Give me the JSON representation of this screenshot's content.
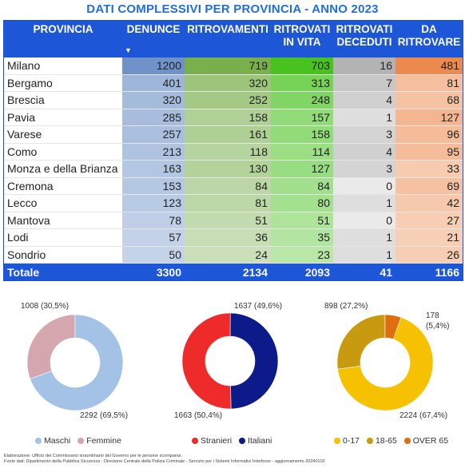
{
  "title": "DATI COMPLESSIVI PER PROVINCIA - ANNO 2023",
  "table": {
    "headers": {
      "provincia": "PROVINCIA",
      "denunce": "DENUNCE",
      "ritrovamenti": "RITROVAMENTI",
      "vita_1": "RITROVATI",
      "vita_2": "IN VITA",
      "deceduti_1": "RITROVATI",
      "deceduti_2": "DECEDUTI",
      "ritrovare_1": "DA",
      "ritrovare_2": "RITROVARE",
      "sort_icon": "▼"
    },
    "rows": [
      {
        "provincia": "Milano",
        "denunce": 1200,
        "ritrovamenti": 719,
        "vita": 703,
        "deceduti": 16,
        "ritrovare": 481
      },
      {
        "provincia": "Bergamo",
        "denunce": 401,
        "ritrovamenti": 320,
        "vita": 313,
        "deceduti": 7,
        "ritrovare": 81
      },
      {
        "provincia": "Brescia",
        "denunce": 320,
        "ritrovamenti": 252,
        "vita": 248,
        "deceduti": 4,
        "ritrovare": 68
      },
      {
        "provincia": "Pavia",
        "denunce": 285,
        "ritrovamenti": 158,
        "vita": 157,
        "deceduti": 1,
        "ritrovare": 127
      },
      {
        "provincia": "Varese",
        "denunce": 257,
        "ritrovamenti": 161,
        "vita": 158,
        "deceduti": 3,
        "ritrovare": 96
      },
      {
        "provincia": "Como",
        "denunce": 213,
        "ritrovamenti": 118,
        "vita": 114,
        "deceduti": 4,
        "ritrovare": 95
      },
      {
        "provincia": "Monza e della Brianza",
        "denunce": 163,
        "ritrovamenti": 130,
        "vita": 127,
        "deceduti": 3,
        "ritrovare": 33
      },
      {
        "provincia": "Cremona",
        "denunce": 153,
        "ritrovamenti": 84,
        "vita": 84,
        "deceduti": 0,
        "ritrovare": 69
      },
      {
        "provincia": "Lecco",
        "denunce": 123,
        "ritrovamenti": 81,
        "vita": 80,
        "deceduti": 1,
        "ritrovare": 42
      },
      {
        "provincia": "Mantova",
        "denunce": 78,
        "ritrovamenti": 51,
        "vita": 51,
        "deceduti": 0,
        "ritrovare": 27
      },
      {
        "provincia": "Lodi",
        "denunce": 57,
        "ritrovamenti": 36,
        "vita": 35,
        "deceduti": 1,
        "ritrovare": 21
      },
      {
        "provincia": "Sondrio",
        "denunce": 50,
        "ritrovamenti": 24,
        "vita": 23,
        "deceduti": 1,
        "ritrovare": 26
      }
    ],
    "total": {
      "label": "Totale",
      "denunce": 3300,
      "ritrovamenti": 2134,
      "vita": 2093,
      "deceduti": 41,
      "ritrovare": 1166
    }
  },
  "colors": {
    "header_blue": "#1e56d8",
    "title_blue": "#1f6fd8",
    "denunce_dark": "#6f93c8",
    "ritrovamenti_dark": "#79b04c",
    "vita_dark": "#48c21e",
    "deceduti_dark": "#b3b3b3",
    "ritrovare_dark": "#ec8a4e"
  },
  "chart_data": [
    {
      "type": "pie",
      "categories": [
        "Maschi",
        "Femmine"
      ],
      "values": [
        2292,
        1008
      ],
      "labels": [
        "2292 (69,5%)",
        "1008 (30,5%)"
      ],
      "colors": [
        "#a4c2e6",
        "#d3a7ad"
      ],
      "legend": "bottom"
    },
    {
      "type": "pie",
      "categories": [
        "Stranieri",
        "Italiani"
      ],
      "values": [
        1663,
        1637
      ],
      "labels": [
        "1663 (50,4%)",
        "1637 (49,6%)"
      ],
      "colors": [
        "#ee2a2a",
        "#0c1a8a"
      ],
      "legend": "bottom"
    },
    {
      "type": "pie",
      "categories": [
        "0-17",
        "18-65",
        "OVER 65"
      ],
      "values": [
        898,
        2224,
        178
      ],
      "labels": [
        "898 (27,2%)",
        "2224 (67,4%)",
        "178",
        "(5,4%)"
      ],
      "colors": [
        "#c89a10",
        "#f6c100",
        "#e06d10"
      ],
      "legend": "bottom"
    }
  ],
  "footer": {
    "line1": "Elaborazione: Ufficio del Commissario straordinario del Governo per le persone scomparse.",
    "line2": "Fonte dati: Dipartimento della Pubblica Sicurezza - Direzione Centrale della Polizia Criminale - Servizio per i Sistemi Informativi Interforze - aggiornamento 20240102"
  }
}
